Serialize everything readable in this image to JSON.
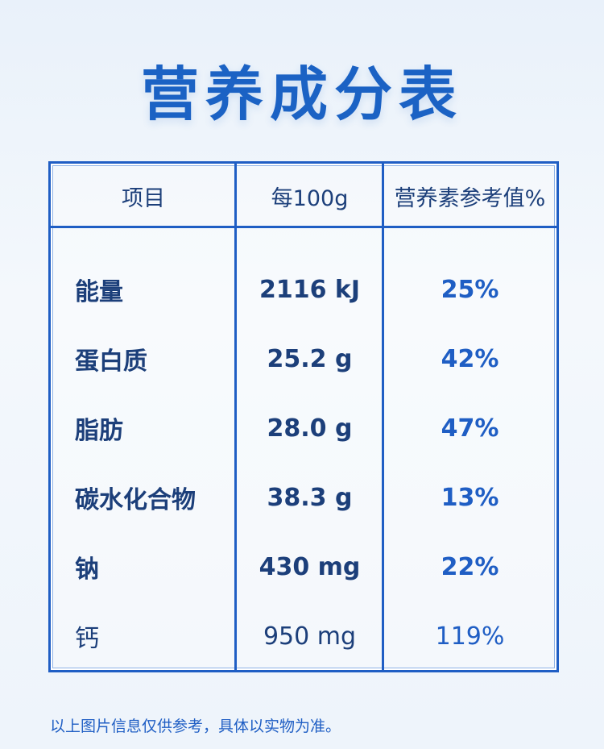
{
  "header": {
    "title": "营养成分表"
  },
  "table": {
    "columns": [
      "项目",
      "每100g",
      "营养素参考值%"
    ],
    "rows": [
      [
        "能量",
        "2116 kJ",
        "25%"
      ],
      [
        "蛋白质",
        "25.2 g",
        "42%"
      ],
      [
        "脂肪",
        "28.0 g",
        "47%"
      ],
      [
        "碳水化合物",
        "38.3 g",
        "13%"
      ],
      [
        "钠",
        "430 mg",
        "22%"
      ],
      [
        "钙",
        "950 mg",
        "119%"
      ]
    ]
  },
  "footnote": "以上图片信息仅供参考，具体以实物为准。"
}
